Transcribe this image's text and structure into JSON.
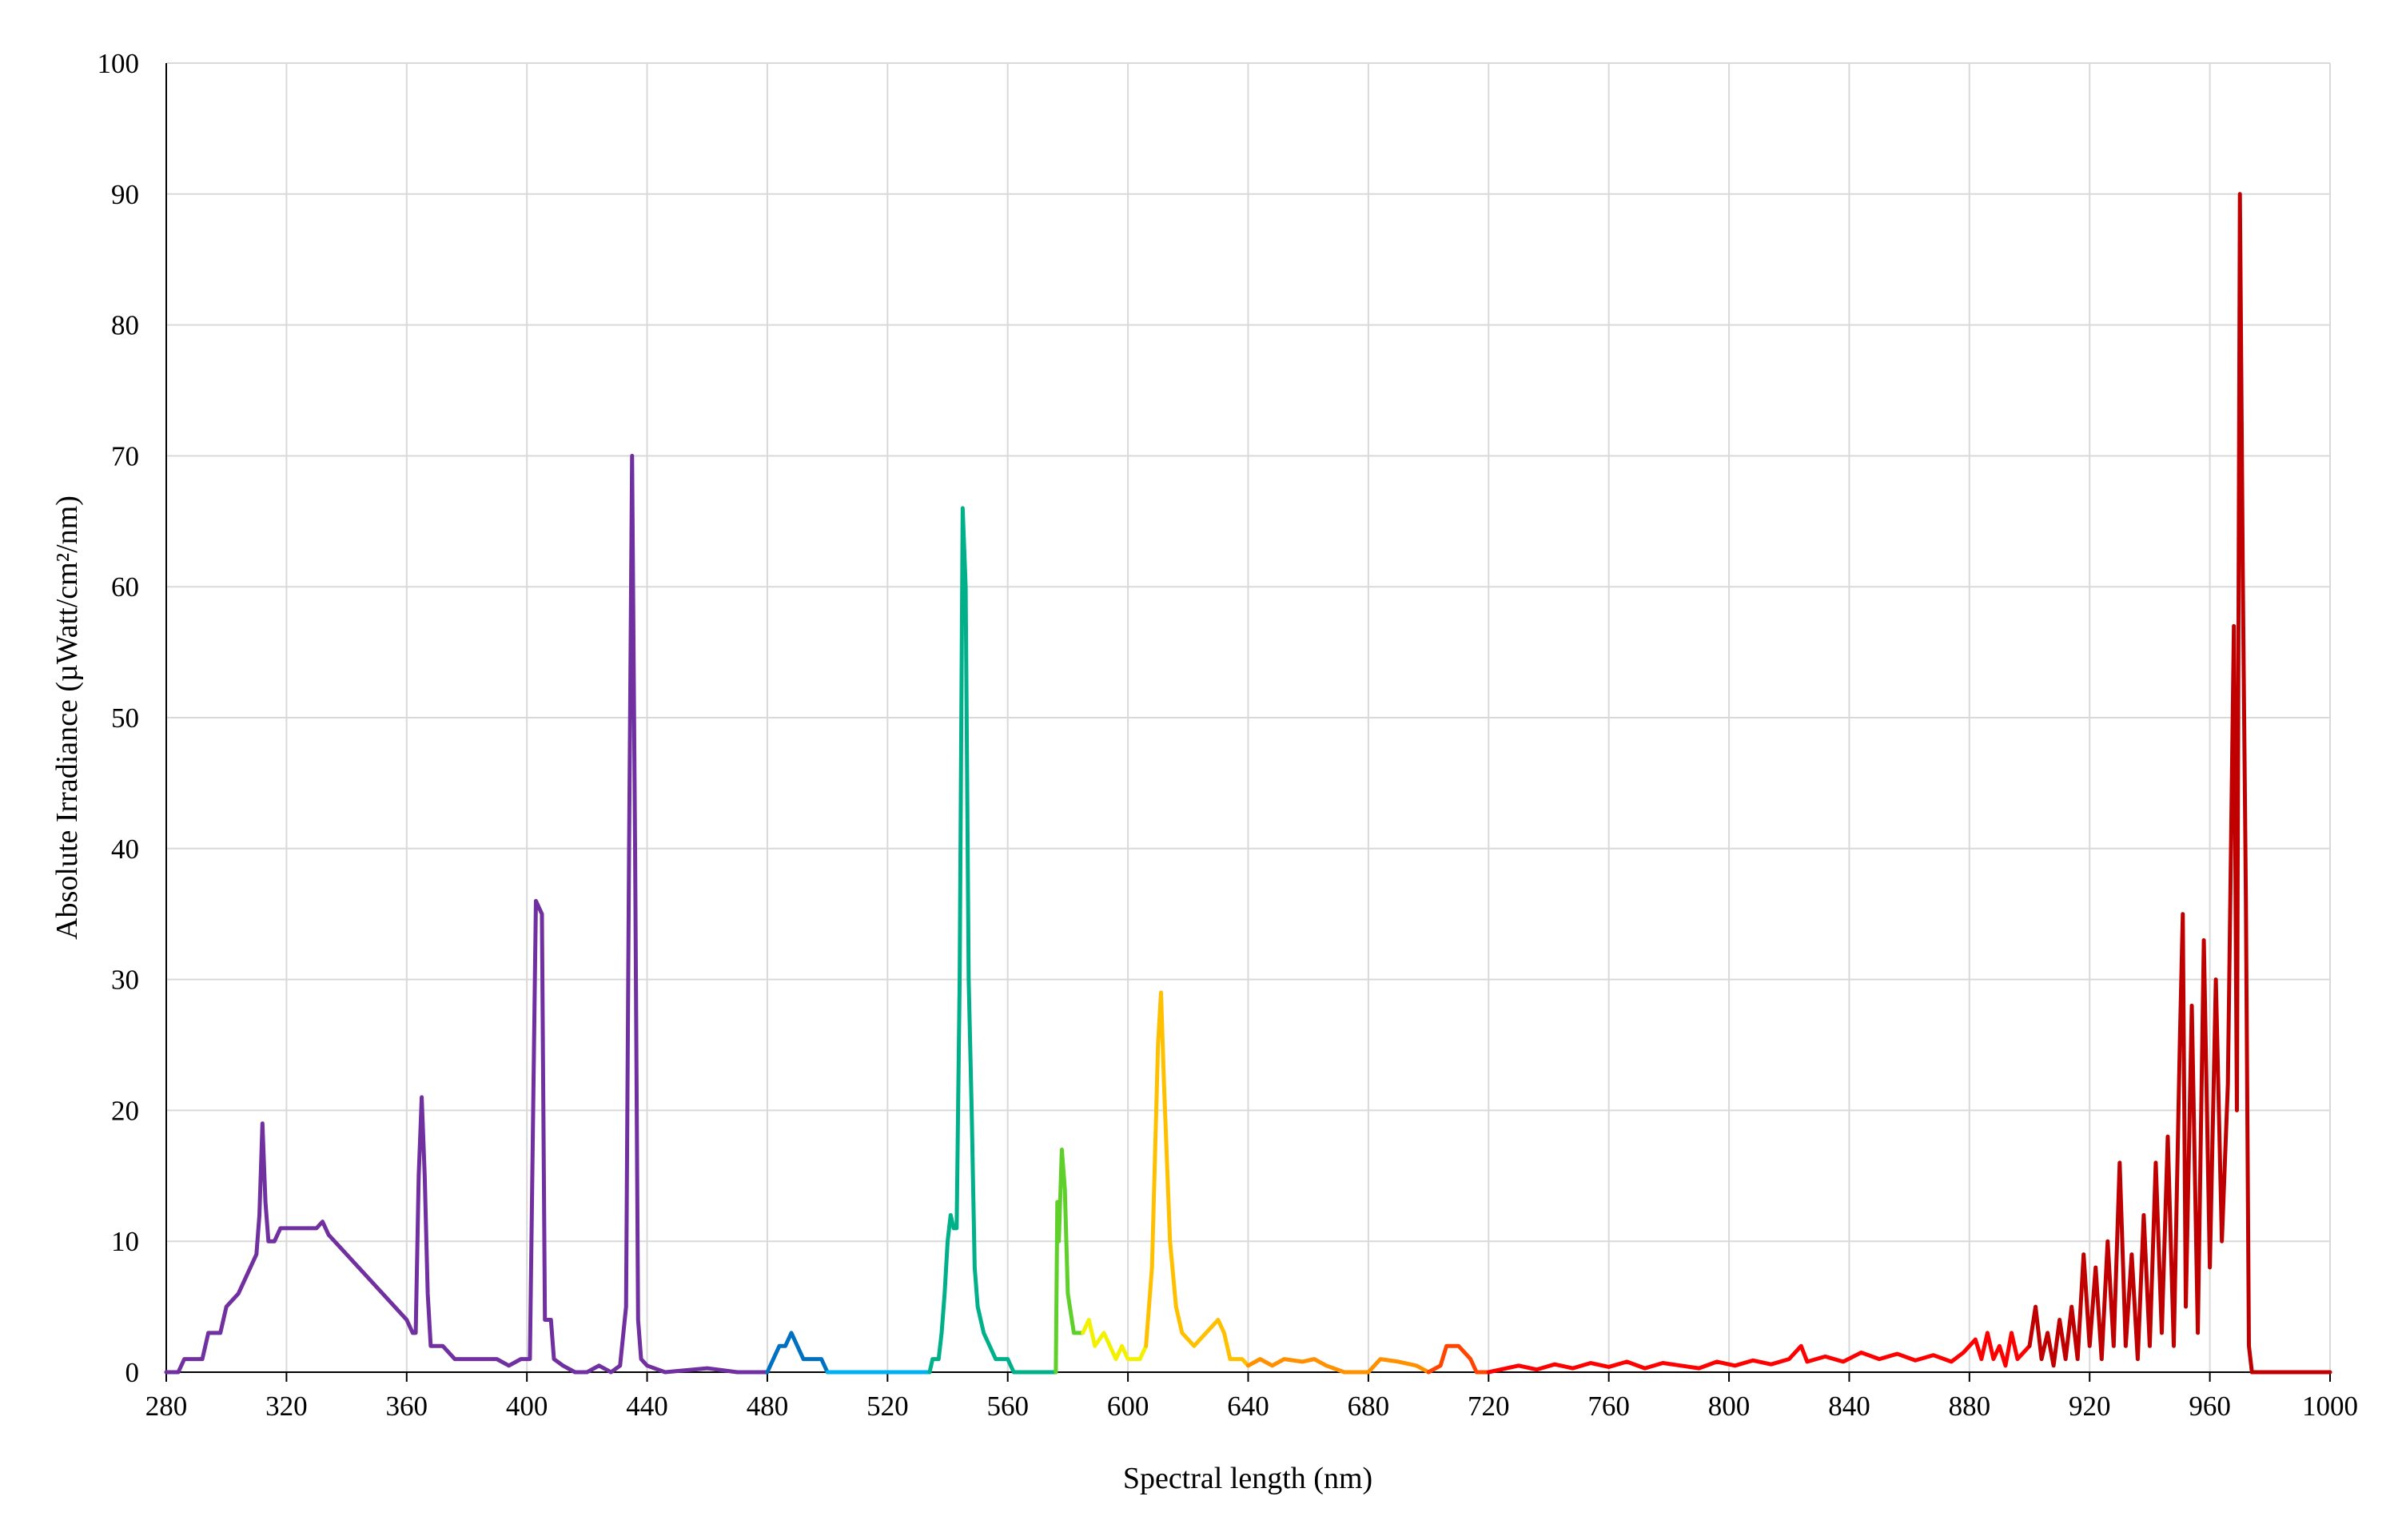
{
  "chart_data": {
    "type": "line",
    "xlabel": "Spectral length (nm)",
    "ylabel": "Absolute Irradiance (µWatt/cm²/nm)",
    "xlim": [
      280,
      1000
    ],
    "xticks": [
      280,
      320,
      360,
      400,
      440,
      480,
      520,
      560,
      600,
      640,
      680,
      720,
      760,
      800,
      840,
      880,
      920,
      960,
      1000
    ],
    "ylim": [
      0,
      100
    ],
    "yticks": [
      0,
      10,
      20,
      30,
      40,
      50,
      60,
      70,
      80,
      90,
      100
    ],
    "grid": true,
    "series": [
      {
        "color": "#7030a0",
        "x": [
          280,
          284,
          286,
          290,
          292,
          294,
          298,
          300,
          304,
          306,
          308,
          310,
          311,
          312,
          313,
          314,
          316,
          318,
          322,
          326,
          330,
          332,
          334,
          336,
          340,
          344,
          348,
          352,
          356,
          360,
          362,
          363,
          364,
          365,
          366,
          367,
          368,
          372,
          376,
          384,
          390,
          394,
          398,
          401,
          403,
          405,
          406,
          408,
          409,
          412,
          416,
          420,
          424,
          428,
          431,
          433,
          434,
          435,
          436,
          437,
          438,
          440,
          446,
          460,
          470,
          480
        ],
        "values": [
          0,
          0,
          1,
          1,
          1,
          3,
          3,
          5,
          6,
          7,
          8,
          9,
          12,
          19,
          13,
          10,
          10,
          11,
          11,
          11,
          11,
          11.5,
          10.5,
          10,
          9,
          8,
          7,
          6,
          5,
          4,
          3,
          3,
          15,
          21,
          15,
          6,
          2,
          2,
          1,
          1,
          1,
          0.5,
          1,
          1,
          36,
          35,
          4,
          4,
          1,
          0.5,
          0,
          0,
          0.5,
          0,
          0.5,
          5,
          40,
          70,
          40,
          4,
          1,
          0.5,
          0,
          0.3,
          0,
          0
        ]
      },
      {
        "color": "#0070c0",
        "x": [
          480,
          482,
          484,
          486,
          488,
          490,
          492,
          496,
          498,
          500
        ],
        "values": [
          0,
          1,
          2,
          2,
          3,
          2,
          1,
          1,
          1,
          0
        ]
      },
      {
        "color": "#00b0f0",
        "x": [
          500,
          510,
          520,
          530,
          534
        ],
        "values": [
          0,
          0,
          0,
          0,
          0
        ]
      },
      {
        "color": "#00b08a",
        "x": [
          534,
          535,
          537,
          538,
          539,
          540,
          541,
          542,
          543,
          544,
          545,
          546,
          547,
          548,
          549,
          550,
          552,
          554,
          556,
          560,
          562,
          570,
          576
        ],
        "values": [
          0,
          1,
          1,
          3,
          6,
          10,
          12,
          11,
          11,
          30,
          66,
          60,
          30,
          20,
          8,
          5,
          3,
          2,
          1,
          1,
          0,
          0,
          0
        ]
      },
      {
        "color": "#5fd02a",
        "x": [
          576,
          576.5,
          577,
          578,
          579,
          580,
          582,
          585
        ],
        "values": [
          0,
          13,
          10,
          17,
          14,
          6,
          3,
          3
        ]
      },
      {
        "color": "#f2f200",
        "x": [
          585,
          587,
          589,
          592,
          596,
          598,
          600,
          604,
          606
        ],
        "values": [
          3,
          4,
          2,
          3,
          1,
          2,
          1,
          1,
          2
        ]
      },
      {
        "color": "#ffc000",
        "x": [
          606,
          608,
          610,
          611,
          612,
          614,
          616,
          618,
          622,
          626,
          630,
          632,
          634,
          638,
          640
        ],
        "values": [
          2,
          8,
          25,
          29,
          22,
          10,
          5,
          3,
          2,
          3,
          4,
          3,
          1,
          1,
          0.5
        ]
      },
      {
        "color": "#ff9000",
        "x": [
          640,
          644,
          648,
          652,
          658,
          662,
          666,
          672,
          680,
          684,
          690,
          696,
          700
        ],
        "values": [
          0.5,
          1,
          0.5,
          1,
          0.8,
          1,
          0.5,
          0,
          0,
          1,
          0.8,
          0.5,
          0
        ]
      },
      {
        "color": "#ff4500",
        "x": [
          700,
          704,
          706,
          710,
          714,
          716,
          720
        ],
        "values": [
          0,
          0.5,
          2,
          2,
          1,
          0,
          0
        ]
      },
      {
        "color": "#ff0000",
        "x": [
          720,
          726,
          730,
          736,
          742,
          748,
          754,
          760,
          766,
          772,
          778,
          784,
          790,
          796,
          802,
          808,
          814,
          820,
          824,
          826,
          832,
          838,
          844,
          850,
          856,
          862,
          868,
          874,
          878,
          882,
          884,
          886,
          888,
          890,
          892,
          894,
          896,
          900
        ],
        "values": [
          0,
          0.3,
          0.5,
          0.2,
          0.6,
          0.3,
          0.7,
          0.4,
          0.8,
          0.3,
          0.7,
          0.5,
          0.3,
          0.8,
          0.5,
          0.9,
          0.6,
          1,
          2,
          0.8,
          1.2,
          0.8,
          1.5,
          1,
          1.4,
          0.9,
          1.3,
          0.8,
          1.5,
          2.5,
          1,
          3,
          1,
          2,
          0.5,
          3,
          1,
          2
        ]
      },
      {
        "color": "#c00000",
        "x": [
          900,
          902,
          904,
          906,
          908,
          910,
          912,
          914,
          916,
          918,
          920,
          922,
          924,
          926,
          928,
          930,
          932,
          934,
          936,
          938,
          940,
          942,
          944,
          946,
          948,
          950,
          951,
          952,
          954,
          956,
          958,
          960,
          962,
          964,
          966,
          968,
          969,
          970,
          971,
          972,
          973,
          974,
          980,
          1000
        ],
        "values": [
          2,
          5,
          1,
          3,
          0.5,
          4,
          1,
          5,
          1,
          9,
          2,
          8,
          1,
          10,
          2,
          16,
          2,
          9,
          1,
          12,
          2,
          16,
          3,
          18,
          2,
          25,
          35,
          5,
          28,
          3,
          33,
          8,
          30,
          10,
          22,
          57,
          20,
          90,
          60,
          36,
          2,
          0,
          0,
          0
        ]
      }
    ]
  }
}
